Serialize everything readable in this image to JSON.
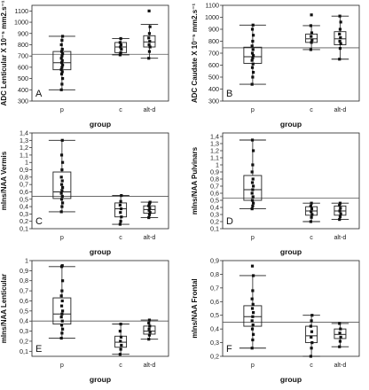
{
  "chart_data": [
    {
      "type": "box",
      "panel_letter": "A",
      "xlabel": "group",
      "ylabel": "ADC Lenticular X 10⁻⁵ mm2.s⁻¹",
      "categories": [
        "p",
        "c",
        "alt-d"
      ],
      "yticks": [
        300,
        400,
        500,
        600,
        700,
        800,
        900,
        1000,
        1100
      ],
      "ylim": [
        300,
        1150
      ],
      "ref_line": 715,
      "groups": [
        {
          "name": "p",
          "min": 400,
          "q1": 578,
          "median": 640,
          "q3": 740,
          "max": 875,
          "points": [
            400,
            450,
            500,
            540,
            560,
            580,
            600,
            620,
            640,
            660,
            680,
            700,
            720,
            740,
            760,
            800,
            840,
            875
          ]
        },
        {
          "name": "c",
          "min": 710,
          "q1": 730,
          "median": 780,
          "q3": 820,
          "max": 855,
          "points": [
            710,
            730,
            760,
            780,
            800,
            820,
            855
          ]
        },
        {
          "name": "alt-d",
          "min": 680,
          "q1": 780,
          "median": 825,
          "q3": 880,
          "max": 980,
          "points": [
            680,
            740,
            780,
            800,
            830,
            860,
            900,
            960,
            1100
          ]
        }
      ]
    },
    {
      "type": "box",
      "panel_letter": "B",
      "xlabel": "group",
      "ylabel": "ADC Caudate X 10⁻⁵ mm2.s⁻¹",
      "categories": [
        "p",
        "c",
        "alt-d"
      ],
      "yticks": [
        300,
        400,
        500,
        600,
        700,
        800,
        900,
        1000,
        1100
      ],
      "ylim": [
        300,
        1100
      ],
      "ref_line": 745,
      "groups": [
        {
          "name": "p",
          "min": 440,
          "q1": 615,
          "median": 670,
          "q3": 750,
          "max": 935,
          "points": [
            440,
            500,
            540,
            580,
            610,
            640,
            660,
            680,
            700,
            730,
            760,
            800,
            850,
            900,
            935
          ]
        },
        {
          "name": "c",
          "min": 730,
          "q1": 790,
          "median": 820,
          "q3": 860,
          "max": 930,
          "points": [
            730,
            790,
            810,
            840,
            870,
            930,
            1020
          ]
        },
        {
          "name": "alt-d",
          "min": 650,
          "q1": 770,
          "median": 820,
          "q3": 880,
          "max": 1010,
          "points": [
            650,
            740,
            780,
            800,
            830,
            860,
            900,
            960,
            1010
          ]
        }
      ]
    },
    {
      "type": "box",
      "panel_letter": "C",
      "xlabel": "group",
      "ylabel": "mIns/NAA Vermis",
      "categories": [
        "p",
        "c",
        "alt-d"
      ],
      "yticks": [
        "0,1",
        "0,2",
        "0,3",
        "0,4",
        "0,5",
        "0,6",
        "0,7",
        "0,8",
        "0,9",
        "1",
        "1,1",
        "1,2",
        "1,3",
        "1,4"
      ],
      "ylim": [
        0.1,
        1.4
      ],
      "ref_line": 0.54,
      "groups": [
        {
          "name": "p",
          "min": 0.33,
          "q1": 0.51,
          "median": 0.6,
          "q3": 0.87,
          "max": 1.3,
          "points": [
            0.33,
            0.4,
            0.45,
            0.5,
            0.54,
            0.58,
            0.62,
            0.66,
            0.7,
            0.75,
            0.8,
            0.9,
            1.0,
            1.1,
            1.3
          ]
        },
        {
          "name": "c",
          "min": 0.16,
          "q1": 0.26,
          "median": 0.37,
          "q3": 0.45,
          "max": 0.55,
          "points": [
            0.16,
            0.2,
            0.26,
            0.32,
            0.37,
            0.42,
            0.47,
            0.55
          ]
        },
        {
          "name": "alt-d",
          "min": 0.25,
          "q1": 0.31,
          "median": 0.36,
          "q3": 0.41,
          "max": 0.46,
          "points": [
            0.25,
            0.29,
            0.32,
            0.35,
            0.38,
            0.41,
            0.44,
            0.46
          ]
        }
      ]
    },
    {
      "type": "box",
      "panel_letter": "D",
      "xlabel": "group",
      "ylabel": "mIns/NAA Pulvinars",
      "categories": [
        "p",
        "c",
        "alt-d"
      ],
      "yticks": [
        "0,1",
        "0,2",
        "0,3",
        "0,4",
        "0,5",
        "0,6",
        "0,7",
        "0,8",
        "0,9",
        "1",
        "1,1",
        "1,2",
        "1,3",
        "1,4"
      ],
      "ylim": [
        0.1,
        1.45
      ],
      "ref_line": 0.53,
      "groups": [
        {
          "name": "p",
          "min": 0.38,
          "q1": 0.5,
          "median": 0.65,
          "q3": 0.85,
          "max": 1.35,
          "points": [
            0.38,
            0.42,
            0.46,
            0.5,
            0.55,
            0.6,
            0.65,
            0.7,
            0.75,
            0.8,
            0.9,
            1.0,
            1.2,
            1.35
          ]
        },
        {
          "name": "c",
          "min": 0.2,
          "q1": 0.29,
          "median": 0.35,
          "q3": 0.41,
          "max": 0.46,
          "points": [
            0.2,
            0.26,
            0.3,
            0.34,
            0.38,
            0.42,
            0.46
          ]
        },
        {
          "name": "alt-d",
          "min": 0.23,
          "q1": 0.29,
          "median": 0.35,
          "q3": 0.42,
          "max": 0.46,
          "points": [
            0.23,
            0.27,
            0.31,
            0.35,
            0.39,
            0.43,
            0.46
          ]
        }
      ]
    },
    {
      "type": "box",
      "panel_letter": "E",
      "xlabel": "group",
      "ylabel": "mIns/NAA Lenticular",
      "categories": [
        "p",
        "c",
        "alt-d"
      ],
      "yticks": [
        "0,1",
        "0,2",
        "0,3",
        "0,4",
        "0,5",
        "0,6",
        "0,7",
        "0,8",
        "0,9",
        "1"
      ],
      "ylim": [
        0.05,
        1.0
      ],
      "ref_line": 0.4,
      "groups": [
        {
          "name": "p",
          "min": 0.23,
          "q1": 0.37,
          "median": 0.47,
          "q3": 0.63,
          "max": 0.94,
          "points": [
            0.23,
            0.28,
            0.32,
            0.36,
            0.4,
            0.44,
            0.47,
            0.5,
            0.55,
            0.6,
            0.65,
            0.7,
            0.8,
            0.94,
            0.95
          ]
        },
        {
          "name": "c",
          "min": 0.07,
          "q1": 0.14,
          "median": 0.19,
          "q3": 0.25,
          "max": 0.37,
          "points": [
            0.07,
            0.12,
            0.16,
            0.2,
            0.24,
            0.3,
            0.37
          ]
        },
        {
          "name": "alt-d",
          "min": 0.22,
          "q1": 0.27,
          "median": 0.3,
          "q3": 0.35,
          "max": 0.41,
          "points": [
            0.22,
            0.26,
            0.29,
            0.32,
            0.35,
            0.38,
            0.41
          ]
        }
      ]
    },
    {
      "type": "box",
      "panel_letter": "F",
      "xlabel": "group",
      "ylabel": "mIns/NAA Frontal",
      "categories": [
        "p",
        "c",
        "alt-d"
      ],
      "yticks": [
        "0,2",
        "0,3",
        "0,4",
        "0,5",
        "0,6",
        "0,7",
        "0,8",
        "0,9"
      ],
      "ylim": [
        0.2,
        0.9
      ],
      "ref_line": 0.45,
      "groups": [
        {
          "name": "p",
          "min": 0.26,
          "q1": 0.42,
          "median": 0.49,
          "q3": 0.57,
          "max": 0.79,
          "points": [
            0.26,
            0.32,
            0.36,
            0.4,
            0.43,
            0.46,
            0.49,
            0.52,
            0.55,
            0.58,
            0.62,
            0.68,
            0.79,
            0.86
          ]
        },
        {
          "name": "c",
          "min": 0.2,
          "q1": 0.3,
          "median": 0.35,
          "q3": 0.42,
          "max": 0.5,
          "points": [
            0.2,
            0.26,
            0.3,
            0.34,
            0.38,
            0.42,
            0.46,
            0.5
          ]
        },
        {
          "name": "alt-d",
          "min": 0.27,
          "q1": 0.33,
          "median": 0.36,
          "q3": 0.4,
          "max": 0.44,
          "points": [
            0.27,
            0.31,
            0.34,
            0.37,
            0.4,
            0.44
          ]
        }
      ]
    }
  ]
}
